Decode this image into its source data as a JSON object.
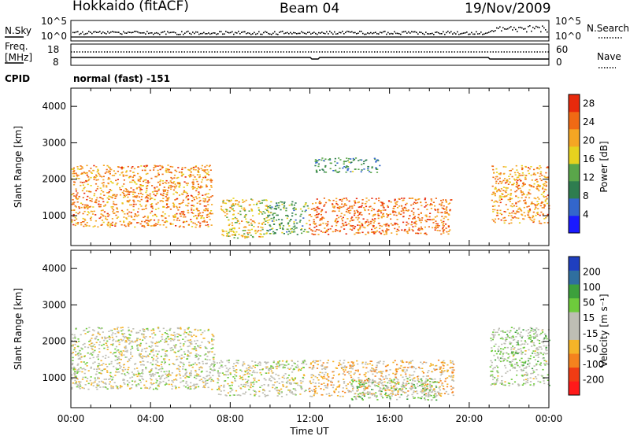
{
  "header": {
    "station": "Hokkaido (fitACF)",
    "beam": "Beam 04",
    "date": "19/Nov/2009"
  },
  "strip_labels": {
    "nsky": "N.Sky",
    "nsearch": "N.Search",
    "freq_line1": "Freq.",
    "freq_line2": "[MHz]",
    "nave": "Nave",
    "cpid": "CPID",
    "cpid_value": "normal (fast) -151"
  },
  "strip_ticks": {
    "noise_top": "10^5",
    "noise_bottom": "10^0",
    "freq_top": "18",
    "freq_bottom": "8",
    "nave_top": "60",
    "nave_bottom": "0"
  },
  "colors": {
    "power_scale": [
      "#1a1aff",
      "#3366cc",
      "#2e7d4f",
      "#5aa64a",
      "#e6d21e",
      "#f5a623",
      "#f06a14",
      "#e82a0c"
    ],
    "velocity_scale": [
      "#ff1a1a",
      "#f03c14",
      "#f5821e",
      "#f5b428",
      "#bebeb4",
      "#bebeb4",
      "#6ecb3c",
      "#3ca03c",
      "#2f6f9f",
      "#1f3fbf"
    ],
    "ground_scatter": "#bebeb4"
  },
  "chart_data": [
    {
      "type": "heatmap",
      "panel": "power",
      "xlabel": "",
      "ylabel": "Slant Range [km]",
      "xlim": [
        0,
        24
      ],
      "ylim": [
        180,
        4500
      ],
      "y_ticks": [
        "1000",
        "2000",
        "3000",
        "4000"
      ],
      "x_ticks": [],
      "colorbar_label": "Power [dB]",
      "colorbar_ticks": [
        "4",
        "8",
        "12",
        "16",
        "20",
        "24",
        "28"
      ],
      "colorbar_range": [
        0,
        30
      ],
      "regions": [
        {
          "x": [
            0.0,
            7.1
          ],
          "y": [
            700,
            2400
          ],
          "value": 22
        },
        {
          "x": [
            7.5,
            9.8
          ],
          "y": [
            400,
            1500
          ],
          "value": 18
        },
        {
          "x": [
            9.8,
            11.9
          ],
          "y": [
            500,
            1400
          ],
          "value": 12
        },
        {
          "x": [
            11.9,
            19.1
          ],
          "y": [
            500,
            1500
          ],
          "value": 24
        },
        {
          "x": [
            12.2,
            15.5
          ],
          "y": [
            2200,
            2600
          ],
          "value": 10
        },
        {
          "x": [
            21.1,
            24.0
          ],
          "y": [
            800,
            2400
          ],
          "value": 22
        }
      ]
    },
    {
      "type": "heatmap",
      "panel": "velocity",
      "xlabel": "Time UT",
      "ylabel": "Slant Range [km]",
      "xlim": [
        0,
        24
      ],
      "ylim": [
        180,
        4500
      ],
      "y_ticks": [
        "1000",
        "2000",
        "3000",
        "4000"
      ],
      "x_ticks": [
        "00:00",
        "04:00",
        "08:00",
        "12:00",
        "16:00",
        "20:00",
        "00:00"
      ],
      "colorbar_label": "Velocity [m s⁻¹]",
      "colorbar_ticks": [
        "200",
        "100",
        "50",
        "15",
        "-15",
        "-50",
        "-100",
        "-200"
      ],
      "colorbar_range": [
        -250,
        250
      ],
      "regions": [
        {
          "x": [
            0.0,
            7.2
          ],
          "y": [
            700,
            2400
          ],
          "value": 0
        },
        {
          "x": [
            7.3,
            11.8
          ],
          "y": [
            500,
            1500
          ],
          "value": 0
        },
        {
          "x": [
            11.9,
            19.2
          ],
          "y": [
            500,
            1500
          ],
          "value": -60
        },
        {
          "x": [
            14.0,
            18.5
          ],
          "y": [
            400,
            1000
          ],
          "value": 40
        },
        {
          "x": [
            21.0,
            24.0
          ],
          "y": [
            800,
            2400
          ],
          "value": 30
        }
      ]
    }
  ]
}
